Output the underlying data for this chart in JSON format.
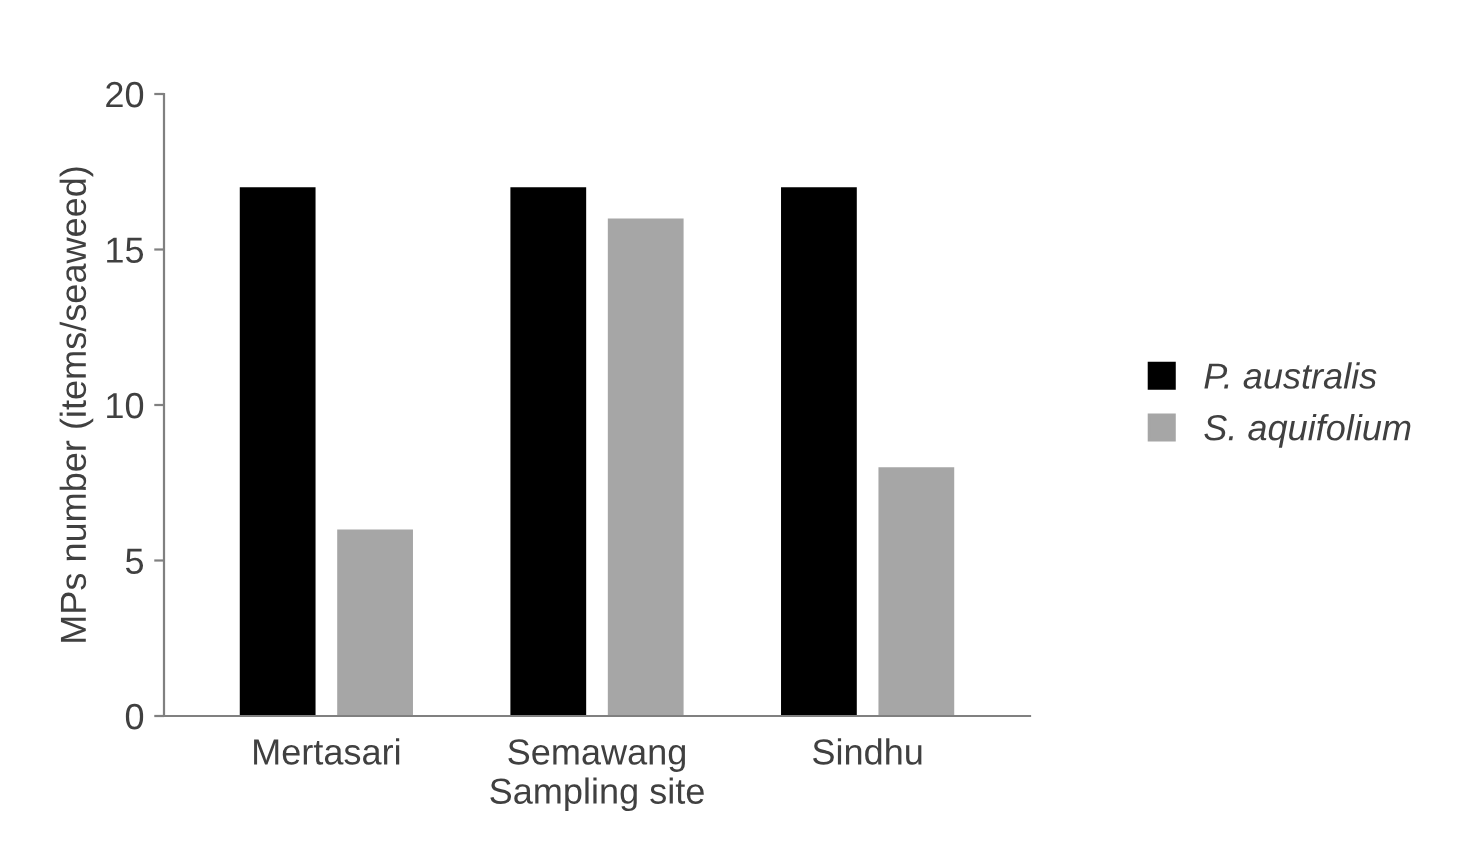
{
  "chart_data": {
    "type": "bar",
    "xlabel": "Sampling site",
    "ylabel": "MPs number (items/seaweed)",
    "categories": [
      "Mertasari",
      "Semawang",
      "Sindhu"
    ],
    "series": [
      {
        "name": "P. australis",
        "color": "#000000",
        "values": [
          17,
          17,
          17
        ]
      },
      {
        "name": "S. aquifolium",
        "color": "#a6a6a6",
        "values": [
          6,
          16,
          8
        ]
      }
    ],
    "ylim": [
      0,
      20
    ],
    "yticks": [
      0,
      5,
      10,
      15,
      20
    ],
    "grid": false,
    "legend": "right"
  }
}
